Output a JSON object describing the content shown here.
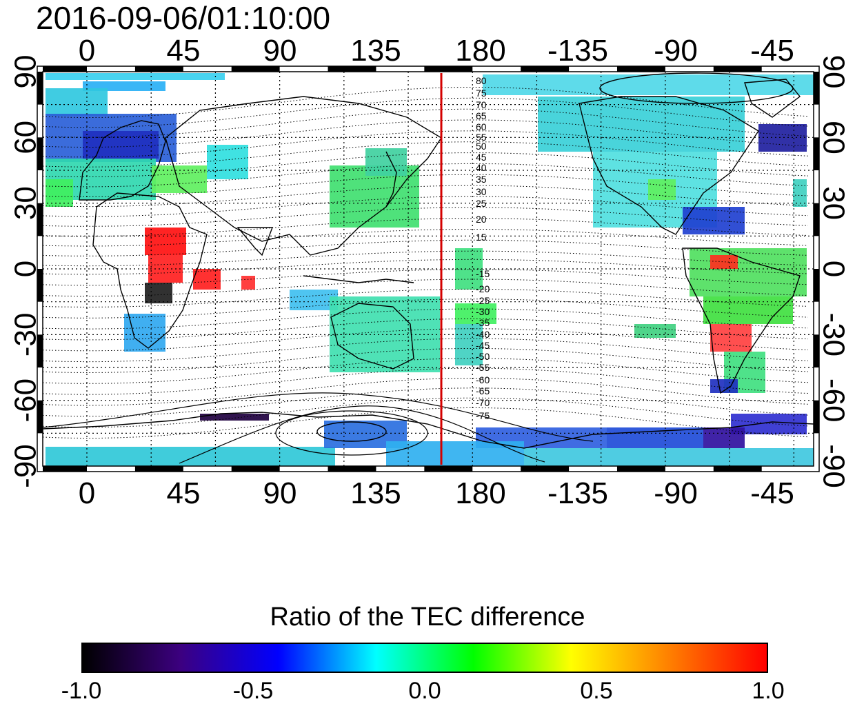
{
  "title": "2016-09-06/01:10:00",
  "axes": {
    "lon_ticks": [
      "0",
      "45",
      "90",
      "135",
      "180",
      "-135",
      "-90",
      "-45"
    ],
    "lat_ticks_left": [
      "90",
      "60",
      "30",
      "0",
      "-30",
      "-60",
      "-90"
    ],
    "lat_ticks_right": [
      "90",
      "60",
      "30",
      "0",
      "-30",
      "-60",
      "-90"
    ]
  },
  "contour_labels": [
    "80",
    "75",
    "70",
    "65",
    "60",
    "55",
    "50",
    "45",
    "40",
    "35",
    "30",
    "25",
    "20",
    "15",
    "-15",
    "-20",
    "-25",
    "-30",
    "-35",
    "-40",
    "-45",
    "-50",
    "-55",
    "-60",
    "-65",
    "-70",
    "-75"
  ],
  "terminator_color": "#d40000",
  "legend": {
    "title": "Ratio of the TEC difference",
    "ticks": [
      "-1.0",
      "-0.5",
      "0.0",
      "0.5",
      "1.0"
    ],
    "colors": [
      "#000000",
      "#3c0080",
      "#0000ff",
      "#00ffff",
      "#00ff00",
      "#ffff00",
      "#ff8000",
      "#ff0000"
    ]
  }
}
